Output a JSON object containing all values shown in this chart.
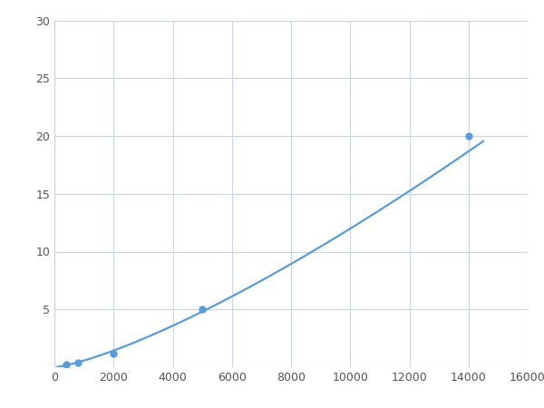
{
  "x_data": [
    400,
    800,
    2000,
    5000,
    14000
  ],
  "y_data": [
    0.2,
    0.4,
    1.2,
    5.0,
    20.0
  ],
  "line_color": "#5b9bd5",
  "marker_color": "#5b9bd5",
  "marker_size": 5,
  "line_width": 1.6,
  "xlim": [
    0,
    16000
  ],
  "ylim": [
    0,
    30
  ],
  "xticks": [
    0,
    2000,
    4000,
    6000,
    8000,
    10000,
    12000,
    14000,
    16000
  ],
  "yticks": [
    0,
    5,
    10,
    15,
    20,
    25,
    30
  ],
  "grid_color": "#c8d4e3",
  "background_color": "#ffffff",
  "figure_bg": "#ffffff"
}
